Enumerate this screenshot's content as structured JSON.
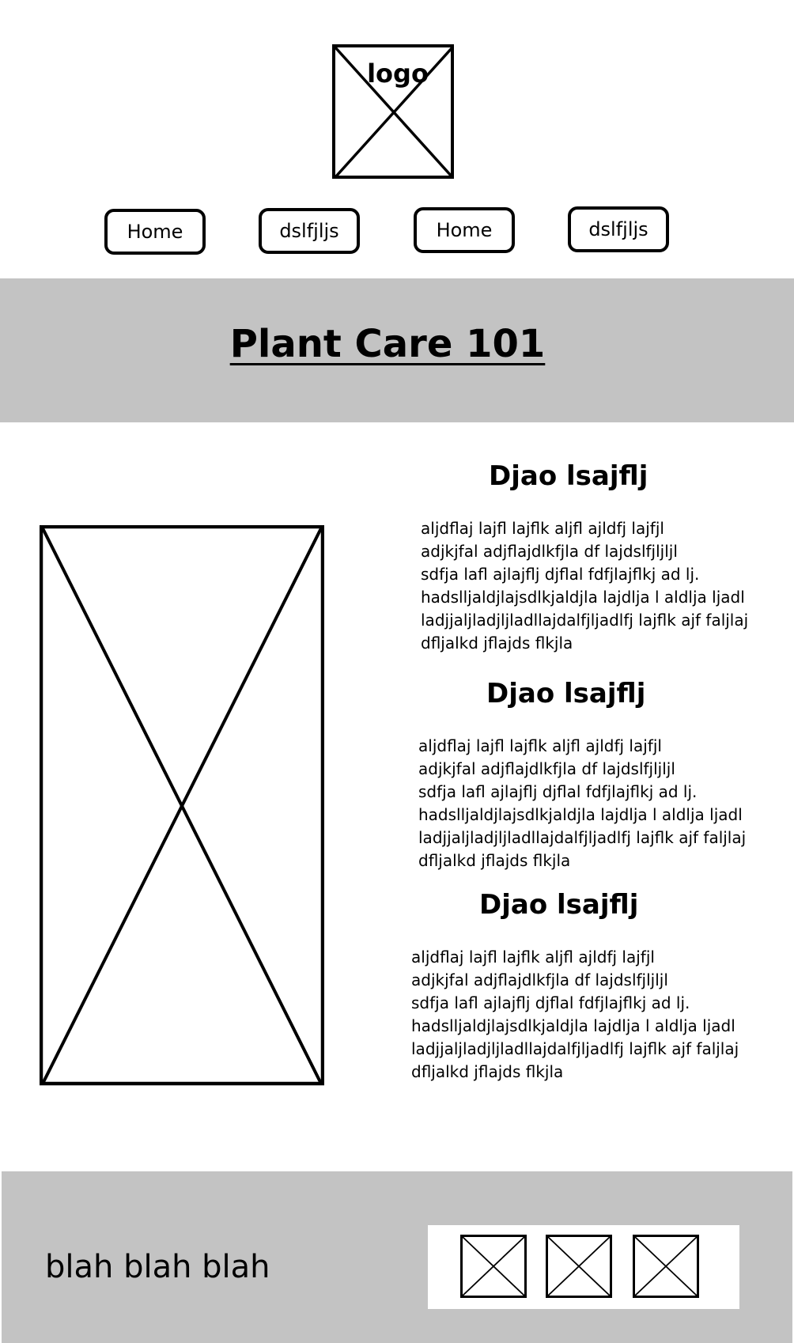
{
  "header": {
    "logo_label": "logo"
  },
  "nav": {
    "items": [
      {
        "label": "Home"
      },
      {
        "label": "dslfjljs"
      },
      {
        "label": "Home"
      },
      {
        "label": "dslfjljs"
      }
    ]
  },
  "hero": {
    "title": "Plant Care 101"
  },
  "sections": [
    {
      "heading": "Djao lsajflj",
      "body": "   aljdflaj lajfl lajflk aljfl ajldfj lajfjl\nadjkjfal adjflajdlkfjla df lajdslfjljljl\nsdfja lafl ajlajflj djflal fdfjlajflkj ad lj.\nhadslljaldjlajsdlkjaldjla lajdlja l aldlja ljadl\nladjjaljladjljladllajdalfjljadlfj lajflk ajf faljlaj\ndfljalkd jflajds flkjla"
    },
    {
      "heading": "Djao lsajflj",
      "body": "   aljdflaj lajfl lajflk aljfl ajldfj lajfjl\nadjkjfal adjflajdlkfjla df lajdslfjljljl\nsdfja lafl ajlajflj djflal fdfjlajflkj ad lj.\nhadslljaldjlajsdlkjaldjla lajdlja l aldlja ljadl\nladjjaljladjljladllajdalfjljadlfj lajflk ajf faljlaj\ndfljalkd jflajds flkjla"
    },
    {
      "heading": "Djao lsajflj",
      "body": "   aljdflaj lajfl lajflk aljfl ajldfj lajfjl\nadjkjfal adjflajdlkfjla df lajdslfjljljl\nsdfja lafl ajlajflj djflal fdfjlajflkj ad lj.\nhadslljaldjlajsdlkjaldjla lajdlja l aldlja ljadl\nladjjaljladjljladllajdalfjljadlfj lajflk ajf faljlaj\ndfljalkd jflajds flkjla"
    }
  ],
  "footer": {
    "text": "blah blah blah"
  },
  "colors": {
    "band": "#c3c3c3",
    "ink": "#000000",
    "background": "#ffffff"
  },
  "icons": {
    "logo": "image-placeholder-icon",
    "main_image": "image-placeholder-icon",
    "thumbnails": "image-placeholder-icon"
  }
}
